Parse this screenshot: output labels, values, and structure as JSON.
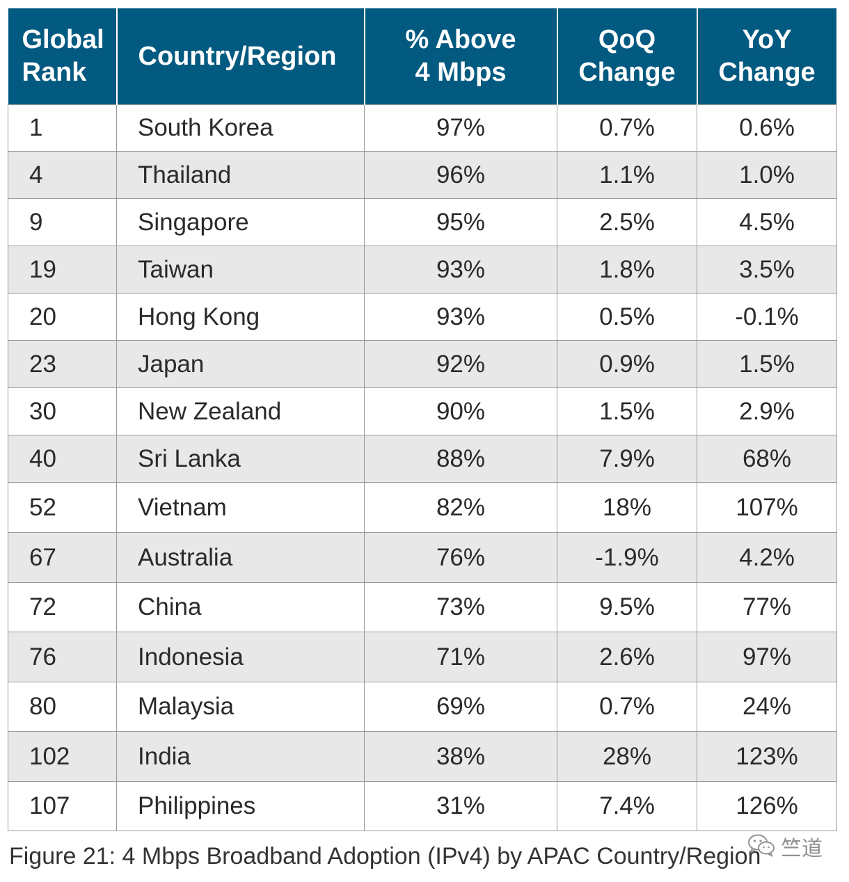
{
  "chart_data": {
    "type": "table",
    "columns": [
      [
        "Global",
        "Rank"
      ],
      [
        "Country/Region"
      ],
      [
        "% Above",
        "4 Mbps"
      ],
      [
        "QoQ",
        "Change"
      ],
      [
        "YoY",
        "Change"
      ]
    ],
    "rows": [
      [
        "1",
        "South Korea",
        "97%",
        "0.7%",
        "0.6%"
      ],
      [
        "4",
        "Thailand",
        "96%",
        "1.1%",
        "1.0%"
      ],
      [
        "9",
        "Singapore",
        "95%",
        "2.5%",
        "4.5%"
      ],
      [
        "19",
        "Taiwan",
        "93%",
        "1.8%",
        "3.5%"
      ],
      [
        "20",
        "Hong Kong",
        "93%",
        "0.5%",
        "-0.1%"
      ],
      [
        "23",
        "Japan",
        "92%",
        "0.9%",
        "1.5%"
      ],
      [
        "30",
        "New Zealand",
        "90%",
        "1.5%",
        "2.9%"
      ],
      [
        "40",
        "Sri Lanka",
        "88%",
        "7.9%",
        "68%"
      ],
      [
        "52",
        "Vietnam",
        "82%",
        "18%",
        "107%"
      ],
      [
        "67",
        "Australia",
        "76%",
        "-1.9%",
        "4.2%"
      ],
      [
        "72",
        "China",
        "73%",
        "9.5%",
        "77%"
      ],
      [
        "76",
        "Indonesia",
        "71%",
        "2.6%",
        "97%"
      ],
      [
        "80",
        "Malaysia",
        "69%",
        "0.7%",
        "24%"
      ],
      [
        "102",
        "India",
        "38%",
        "28%",
        "123%"
      ],
      [
        "107",
        "Philippines",
        "31%",
        "7.4%",
        "126%"
      ]
    ],
    "caption": "Figure 21: 4 Mbps Broadband Adoption (IPv4) by APAC Country/Region"
  },
  "colors": {
    "header_bg": "#035a80",
    "header_text": "#ffffff",
    "row_alt_bg": "#e8e8e8",
    "border": "#9a9a9a"
  },
  "watermark": {
    "icon": "wechat-icon",
    "text": "竺道"
  }
}
